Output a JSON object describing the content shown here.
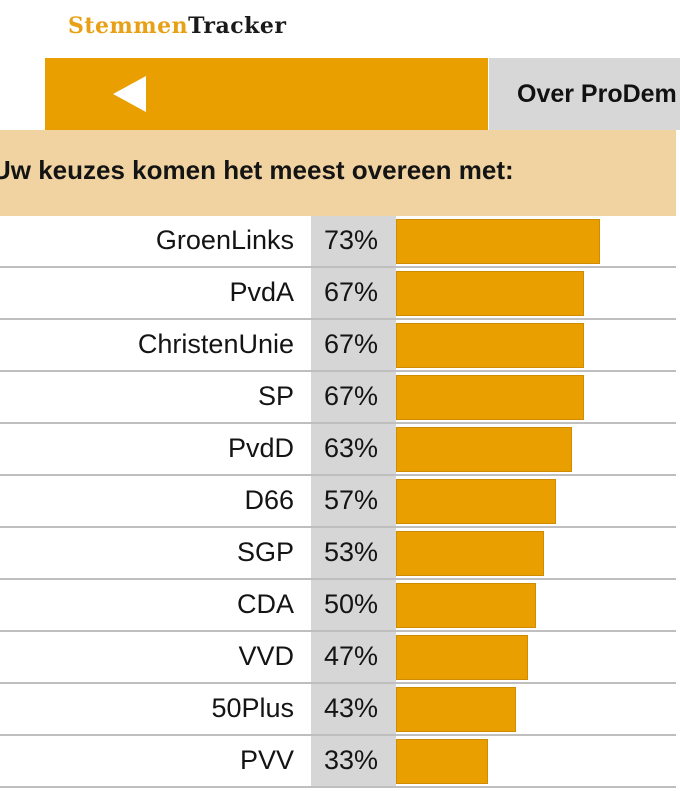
{
  "app": {
    "logo_part1": "Stemmen",
    "logo_part2": "Tracker"
  },
  "header": {
    "back_icon": "back-arrow-icon",
    "about_label": "Over ProDem"
  },
  "banner": {
    "text": "Uw keuzes komen het meest overeen met:"
  },
  "colors": {
    "accent": "#e99f00",
    "banner_bg": "#f0d3a0",
    "pct_bg": "#d6d6d6"
  },
  "results": [
    {
      "party": "GroenLinks",
      "percent_label": "73%",
      "value": 73
    },
    {
      "party": "PvdA",
      "percent_label": "67%",
      "value": 67
    },
    {
      "party": "ChristenUnie",
      "percent_label": "67%",
      "value": 67
    },
    {
      "party": "SP",
      "percent_label": "67%",
      "value": 67
    },
    {
      "party": "PvdD",
      "percent_label": "63%",
      "value": 63
    },
    {
      "party": "D66",
      "percent_label": "57%",
      "value": 57
    },
    {
      "party": "SGP",
      "percent_label": "53%",
      "value": 53
    },
    {
      "party": "CDA",
      "percent_label": "50%",
      "value": 50
    },
    {
      "party": "VVD",
      "percent_label": "47%",
      "value": 47
    },
    {
      "party": "50Plus",
      "percent_label": "43%",
      "value": 43
    },
    {
      "party": "PVV",
      "percent_label": "33%",
      "value": 33
    }
  ]
}
